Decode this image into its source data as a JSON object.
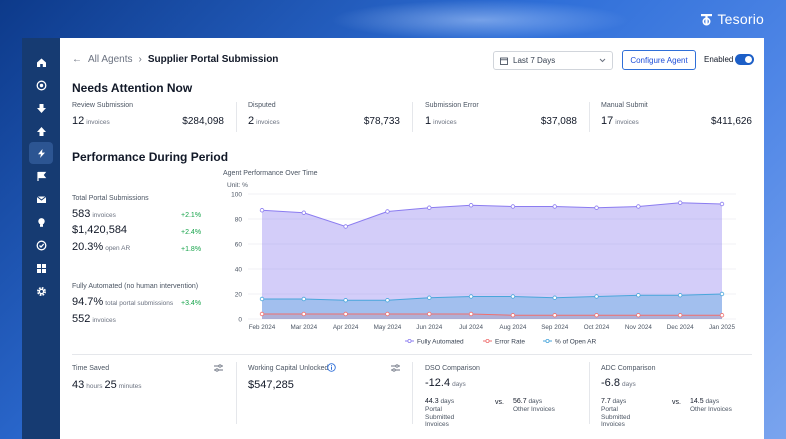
{
  "brand": {
    "name": "Tesorio"
  },
  "sidebar": {
    "items": [
      "home-icon",
      "target-icon",
      "download-icon",
      "upload-icon",
      "automation-icon",
      "flag-icon",
      "mail-icon",
      "lightbulb-icon",
      "badge-icon",
      "grid-icon",
      "settings-icon"
    ]
  },
  "header": {
    "back_label": "All Agents",
    "title": "Supplier Portal Submission",
    "date_range": "Last 7 Days",
    "configure_label": "Configure Agent",
    "enabled_label": "Enabled"
  },
  "needs_attention": {
    "title": "Needs Attention Now",
    "cards": [
      {
        "label": "Review Submission",
        "count": "12",
        "unit": "invoices",
        "amount": "$284,098"
      },
      {
        "label": "Disputed",
        "count": "2",
        "unit": "invoices",
        "amount": "$78,733"
      },
      {
        "label": "Submission Error",
        "count": "1",
        "unit": "invoices",
        "amount": "$37,088"
      },
      {
        "label": "Manual Submit",
        "count": "17",
        "unit": "invoices",
        "amount": "$411,626"
      }
    ]
  },
  "performance": {
    "title": "Performance During Period",
    "total_label": "Total Portal Submissions",
    "invoices_count": "583",
    "invoices_unit": "invoices",
    "invoices_delta": "+2.1%",
    "amount": "$1,420,584",
    "amount_delta": "+2.4%",
    "open_ar": "20.3%",
    "open_ar_unit": "open AR",
    "open_ar_delta": "+1.8%",
    "automated_label": "Fully Automated (no human intervention)",
    "automated_pct": "94.7%",
    "automated_unit": "total portal submissions",
    "automated_delta": "+3.4%",
    "automated_invoices": "552",
    "automated_invoices_unit": "invoices"
  },
  "chart_data": {
    "type": "area",
    "title": "Agent Performance Over Time",
    "ylabel": "Unit: %",
    "ylim": [
      0,
      100
    ],
    "yticks": [
      0,
      20,
      40,
      60,
      80,
      100
    ],
    "categories": [
      "Feb 2024",
      "Mar 2024",
      "Apr 2024",
      "May 2024",
      "Jun 2024",
      "Jul 2024",
      "Aug 2024",
      "Sep 2024",
      "Oct 2024",
      "Nov 2024",
      "Dec 2024",
      "Jan 2025"
    ],
    "series": [
      {
        "name": "Fully Automated",
        "color": "#8b7cf0",
        "values": [
          87,
          85,
          74,
          86,
          89,
          91,
          90,
          90,
          89,
          90,
          93,
          92
        ]
      },
      {
        "name": "Error Rate",
        "color": "#ef6f6f",
        "values": [
          4,
          4,
          4,
          4,
          4,
          4,
          3,
          3,
          3,
          3,
          3,
          3
        ]
      },
      {
        "name": "% of Open AR",
        "color": "#49a6db",
        "values": [
          16,
          16,
          15,
          15,
          17,
          18,
          18,
          17,
          18,
          19,
          19,
          20
        ]
      }
    ]
  },
  "bottom": {
    "time_saved_label": "Time Saved",
    "time_saved_hours": "43",
    "hours_unit": "hours",
    "time_saved_minutes": "25",
    "minutes_unit": "minutes",
    "wc_label": "Working Capital Unlocked",
    "wc_value": "$547,285",
    "dso_label": "DSO Comparison",
    "dso_value": "-12.4",
    "dso_unit": "days",
    "dso_portal": "44.3",
    "dso_portal_unit": "days",
    "dso_portal_label": "Portal Submitted Invoices",
    "dso_other": "56.7",
    "dso_other_unit": "days",
    "dso_other_label": "Other Invoices",
    "adc_label": "ADC Comparison",
    "adc_value": "-6.8",
    "adc_unit": "days",
    "adc_portal": "7.7",
    "adc_portal_unit": "days",
    "adc_portal_label": "Portal Submitted Invoices",
    "adc_other": "14.5",
    "adc_other_unit": "days",
    "adc_other_label": "Other Invoices",
    "vs_label": "vs."
  }
}
